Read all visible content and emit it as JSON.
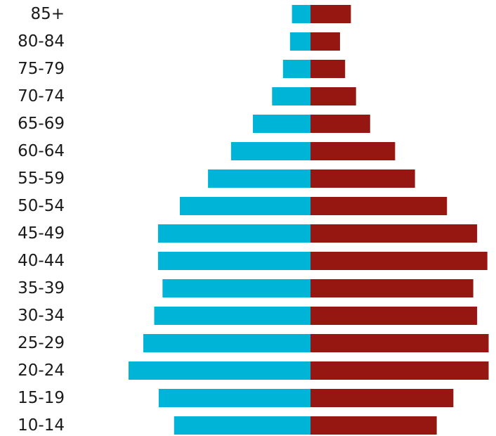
{
  "chart_data": {
    "type": "bar",
    "orientation": "horizontal",
    "layout": "population-pyramid",
    "categories": [
      "85+",
      "80-84",
      "75-79",
      "70-74",
      "65-69",
      "60-64",
      "55-59",
      "50-54",
      "45-49",
      "40-44",
      "35-39",
      "30-34",
      "25-29",
      "20-24",
      "15-19",
      "10-14"
    ],
    "series": [
      {
        "color": "#00b4d8",
        "side": "left",
        "values": [
          2.9,
          3.2,
          4.3,
          6.0,
          9.0,
          12.4,
          16.0,
          20.4,
          23.8,
          23.8,
          23.1,
          24.4,
          26.1,
          28.4,
          23.7,
          21.3
        ]
      },
      {
        "color": "#961612",
        "side": "right",
        "values": [
          6.3,
          4.6,
          5.4,
          7.1,
          9.3,
          13.2,
          16.3,
          21.3,
          26.0,
          27.6,
          25.4,
          26.0,
          27.8,
          27.8,
          22.3,
          19.7
        ]
      }
    ],
    "xlim": [
      0,
      28.4
    ],
    "grid": false,
    "legend": "none"
  }
}
